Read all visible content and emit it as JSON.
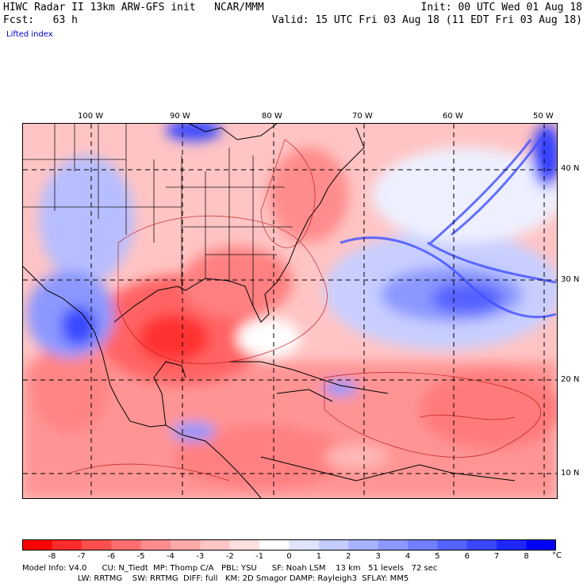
{
  "header": {
    "line1_left": "HIWC Radar II 13km ARW-GFS init   NCAR/MMM",
    "line2_left": "Fcst:   63 h",
    "line1_right": "Init: 00 UTC Wed 01 Aug 18",
    "line2_right": "Valid: 15 UTC Fri 03 Aug 18 (11 EDT Fri 03 Aug 18)",
    "field": "Lifted index"
  },
  "lon_labels": [
    "100 W",
    "90 W",
    "80 W",
    "70 W",
    "60 W",
    "50 W"
  ],
  "lat_labels": [
    "40 N",
    "30 N",
    "20 N",
    "10 N"
  ],
  "colorbar": {
    "ticks": [
      "-8",
      "-7",
      "-6",
      "-5",
      "-4",
      "-3",
      "-2",
      "-1",
      "0",
      "1",
      "2",
      "3",
      "4",
      "5",
      "6",
      "7",
      "8"
    ],
    "unit": "°C",
    "colors": [
      "#ff0000",
      "#ff2a2a",
      "#ff4e4e",
      "#ff6e6e",
      "#ff8c8c",
      "#ffa8a8",
      "#ffc4c4",
      "#ffe0e0",
      "#ffffff",
      "#e0e4ff",
      "#c4ccff",
      "#a8b2ff",
      "#8c98ff",
      "#707eff",
      "#5462ff",
      "#3846ff",
      "#1c28ff",
      "#0000ff"
    ]
  },
  "model_info": {
    "line1": "Model Info: V4.0      CU: N_Tiedt  MP: Thomp C/A   PBL: YSU      SF: Noah LSM    13 km   51 levels   72 sec",
    "line2": "                      LW: RRTMG    SW: RRTMG  DIFF: full   KM: 2D Smagor DAMP: Rayleigh3  SFLAY: MM5"
  },
  "colors": {
    "warm": "#ff6e6e",
    "cool": "#707eff",
    "neutral": "#ffffff"
  }
}
